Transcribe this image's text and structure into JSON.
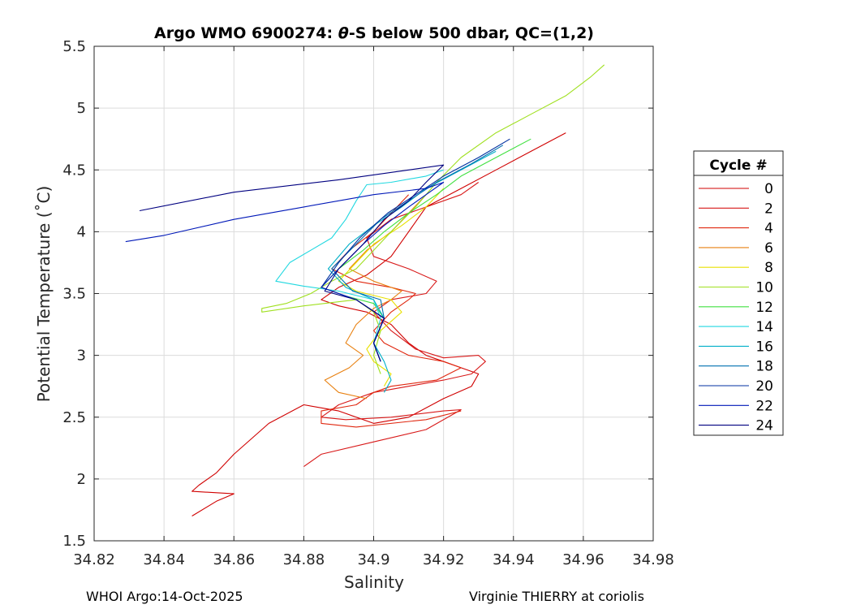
{
  "chart_data": {
    "type": "line",
    "title_prefix": "Argo WMO 6900274: ",
    "title_theta": "θ",
    "title_suffix": "-S below 500 dbar,  QC=(1,2)",
    "xlabel": "Salinity",
    "ylabel": "Potential Temperature (˚C)",
    "xlim": [
      34.82,
      34.98
    ],
    "ylim": [
      1.5,
      5.5
    ],
    "xticks": [
      34.82,
      34.84,
      34.86,
      34.88,
      34.9,
      34.92,
      34.94,
      34.96,
      34.98
    ],
    "xtick_labels": [
      "34.82",
      "34.84",
      "34.86",
      "34.88",
      "34.9",
      "34.92",
      "34.94",
      "34.96",
      "34.98"
    ],
    "yticks": [
      1.5,
      2,
      2.5,
      3,
      3.5,
      4,
      4.5,
      5,
      5.5
    ],
    "ytick_labels": [
      "1.5",
      "2",
      "2.5",
      "3",
      "3.5",
      "4",
      "4.5",
      "5",
      "5.5"
    ],
    "grid": true,
    "legend_title": "Cycle #",
    "legend_position": "outside-right",
    "series": [
      {
        "name": "0",
        "color": "#d00000",
        "x": [
          34.955,
          34.945,
          34.935,
          34.925,
          34.915,
          34.91,
          34.905,
          34.898,
          34.89,
          34.885,
          34.89,
          34.898,
          34.905,
          34.91,
          34.915,
          34.92,
          34.925,
          34.93,
          34.928,
          34.92,
          34.91,
          34.9,
          34.89,
          34.88,
          34.87,
          34.86,
          34.855,
          34.85,
          34.848,
          34.86,
          34.855,
          34.848
        ],
        "y": [
          4.8,
          4.65,
          4.5,
          4.35,
          4.2,
          4.0,
          3.8,
          3.65,
          3.55,
          3.45,
          3.4,
          3.35,
          3.25,
          3.1,
          3.0,
          2.95,
          2.9,
          2.85,
          2.75,
          2.65,
          2.5,
          2.45,
          2.55,
          2.6,
          2.45,
          2.2,
          2.05,
          1.95,
          1.9,
          1.88,
          1.82,
          1.7
        ]
      },
      {
        "name": "2",
        "color": "#d81818",
        "x": [
          34.93,
          34.925,
          34.915,
          34.905,
          34.898,
          34.9,
          34.91,
          34.918,
          34.915,
          34.905,
          34.9,
          34.905,
          34.912,
          34.92,
          34.93,
          34.932,
          34.928,
          34.92,
          34.91,
          34.9,
          34.89,
          34.885,
          34.892,
          34.905,
          34.92,
          34.925,
          34.915,
          34.9,
          34.885,
          34.88
        ],
        "y": [
          4.4,
          4.3,
          4.2,
          4.1,
          3.95,
          3.8,
          3.7,
          3.6,
          3.5,
          3.45,
          3.35,
          3.2,
          3.05,
          2.98,
          3.0,
          2.95,
          2.85,
          2.8,
          2.75,
          2.7,
          2.6,
          2.5,
          2.48,
          2.5,
          2.55,
          2.56,
          2.4,
          2.3,
          2.2,
          2.1
        ]
      },
      {
        "name": "4",
        "color": "#e02810",
        "x": [
          34.91,
          34.905,
          34.9,
          34.893,
          34.888,
          34.895,
          34.905,
          34.912,
          34.91,
          34.905,
          34.9,
          34.903,
          34.91,
          34.92,
          34.925,
          34.918,
          34.905,
          34.9,
          34.895,
          34.885,
          34.885,
          34.895,
          34.915,
          34.925
        ],
        "y": [
          4.3,
          4.15,
          4.0,
          3.85,
          3.7,
          3.6,
          3.55,
          3.5,
          3.45,
          3.35,
          3.2,
          3.1,
          3.0,
          2.95,
          2.9,
          2.8,
          2.75,
          2.7,
          2.6,
          2.55,
          2.45,
          2.42,
          2.48,
          2.55
        ]
      },
      {
        "name": "6",
        "color": "#e88010",
        "x": [
          34.915,
          34.91,
          34.905,
          34.898,
          34.893,
          34.9,
          34.908,
          34.905,
          34.9,
          34.895,
          34.892,
          34.897,
          34.893,
          34.886,
          34.89,
          34.898
        ],
        "y": [
          4.3,
          4.15,
          4.0,
          3.85,
          3.7,
          3.6,
          3.52,
          3.45,
          3.38,
          3.25,
          3.1,
          3.0,
          2.9,
          2.8,
          2.7,
          2.65
        ]
      },
      {
        "name": "8",
        "color": "#e8e000",
        "x": [
          34.92,
          34.915,
          34.908,
          34.9,
          34.895,
          34.89,
          34.895,
          34.905,
          34.908,
          34.902,
          34.898,
          34.9,
          34.905,
          34.903
        ],
        "y": [
          4.35,
          4.2,
          4.05,
          3.9,
          3.75,
          3.6,
          3.52,
          3.45,
          3.35,
          3.2,
          3.05,
          2.95,
          2.85,
          2.75
        ]
      },
      {
        "name": "10",
        "color": "#a0e020",
        "x": [
          34.966,
          34.962,
          34.955,
          34.945,
          34.935,
          34.925,
          34.918,
          34.912,
          34.905,
          34.9,
          34.895,
          34.888,
          34.882,
          34.875,
          34.868,
          34.868,
          34.88,
          34.895,
          34.9,
          34.902,
          34.9,
          34.902
        ],
        "y": [
          5.35,
          5.25,
          5.1,
          4.95,
          4.8,
          4.6,
          4.4,
          4.2,
          4.0,
          3.85,
          3.7,
          3.6,
          3.5,
          3.42,
          3.38,
          3.35,
          3.4,
          3.45,
          3.35,
          3.2,
          3.0,
          2.85
        ]
      },
      {
        "name": "12",
        "color": "#40e040",
        "x": [
          34.945,
          34.935,
          34.925,
          34.918,
          34.91,
          34.903,
          34.897,
          34.89,
          34.885,
          34.892,
          34.9,
          34.903,
          34.9,
          34.902
        ],
        "y": [
          4.75,
          4.6,
          4.45,
          4.3,
          4.15,
          4.0,
          3.85,
          3.7,
          3.55,
          3.48,
          3.42,
          3.3,
          3.1,
          2.95
        ]
      },
      {
        "name": "14",
        "color": "#20d8e0",
        "x": [
          34.92,
          34.915,
          34.905,
          34.898,
          34.895,
          34.892,
          34.888,
          34.882,
          34.876,
          34.872,
          34.88,
          34.89,
          34.9,
          34.902,
          34.9,
          34.902
        ],
        "y": [
          4.5,
          4.45,
          4.4,
          4.38,
          4.25,
          4.1,
          3.95,
          3.85,
          3.75,
          3.6,
          3.56,
          3.52,
          3.45,
          3.3,
          3.1,
          2.95
        ]
      },
      {
        "name": "16",
        "color": "#00b0c8",
        "x": [
          34.935,
          34.925,
          34.915,
          34.908,
          34.9,
          34.893,
          34.887,
          34.892,
          34.9,
          34.903,
          34.9,
          34.903,
          34.905,
          34.903
        ],
        "y": [
          4.65,
          4.5,
          4.35,
          4.2,
          4.05,
          3.9,
          3.7,
          3.55,
          3.45,
          3.3,
          3.1,
          2.95,
          2.8,
          2.7
        ]
      },
      {
        "name": "18",
        "color": "#0070b0",
        "x": [
          34.937,
          34.928,
          34.918,
          34.91,
          34.902,
          34.895,
          34.888,
          34.894,
          34.902,
          34.903,
          34.9,
          34.902
        ],
        "y": [
          4.7,
          4.55,
          4.4,
          4.25,
          4.1,
          3.9,
          3.7,
          3.52,
          3.45,
          3.3,
          3.1,
          2.95
        ]
      },
      {
        "name": "20",
        "color": "#0030a0",
        "x": [
          34.939,
          34.93,
          34.92,
          34.912,
          34.904,
          34.896,
          34.89,
          34.885,
          34.895,
          34.903,
          34.9,
          34.902
        ],
        "y": [
          4.75,
          4.6,
          4.45,
          4.3,
          4.15,
          3.95,
          3.75,
          3.55,
          3.45,
          3.3,
          3.1,
          2.95
        ]
      },
      {
        "name": "22",
        "color": "#0018b8",
        "x": [
          34.829,
          34.84,
          34.86,
          34.88,
          34.9,
          34.915,
          34.92,
          34.915,
          34.91,
          34.903,
          34.897,
          34.89,
          34.885,
          34.895,
          34.903,
          34.9,
          34.902
        ],
        "y": [
          3.92,
          3.97,
          4.1,
          4.2,
          4.3,
          4.35,
          4.4,
          4.3,
          4.2,
          4.05,
          3.9,
          3.7,
          3.55,
          3.45,
          3.3,
          3.1,
          2.95
        ]
      },
      {
        "name": "24",
        "color": "#000080",
        "x": [
          34.833,
          34.86,
          34.89,
          34.91,
          34.92,
          34.915,
          34.91,
          34.903,
          34.897,
          34.89,
          34.886,
          34.895,
          34.903,
          34.9,
          34.902
        ],
        "y": [
          4.17,
          4.32,
          4.42,
          4.5,
          4.54,
          4.4,
          4.25,
          4.1,
          3.9,
          3.7,
          3.52,
          3.45,
          3.3,
          3.1,
          2.95
        ]
      }
    ]
  },
  "footer": {
    "left": "WHOI Argo:14-Oct-2025",
    "right": "Virginie THIERRY at coriolis"
  }
}
